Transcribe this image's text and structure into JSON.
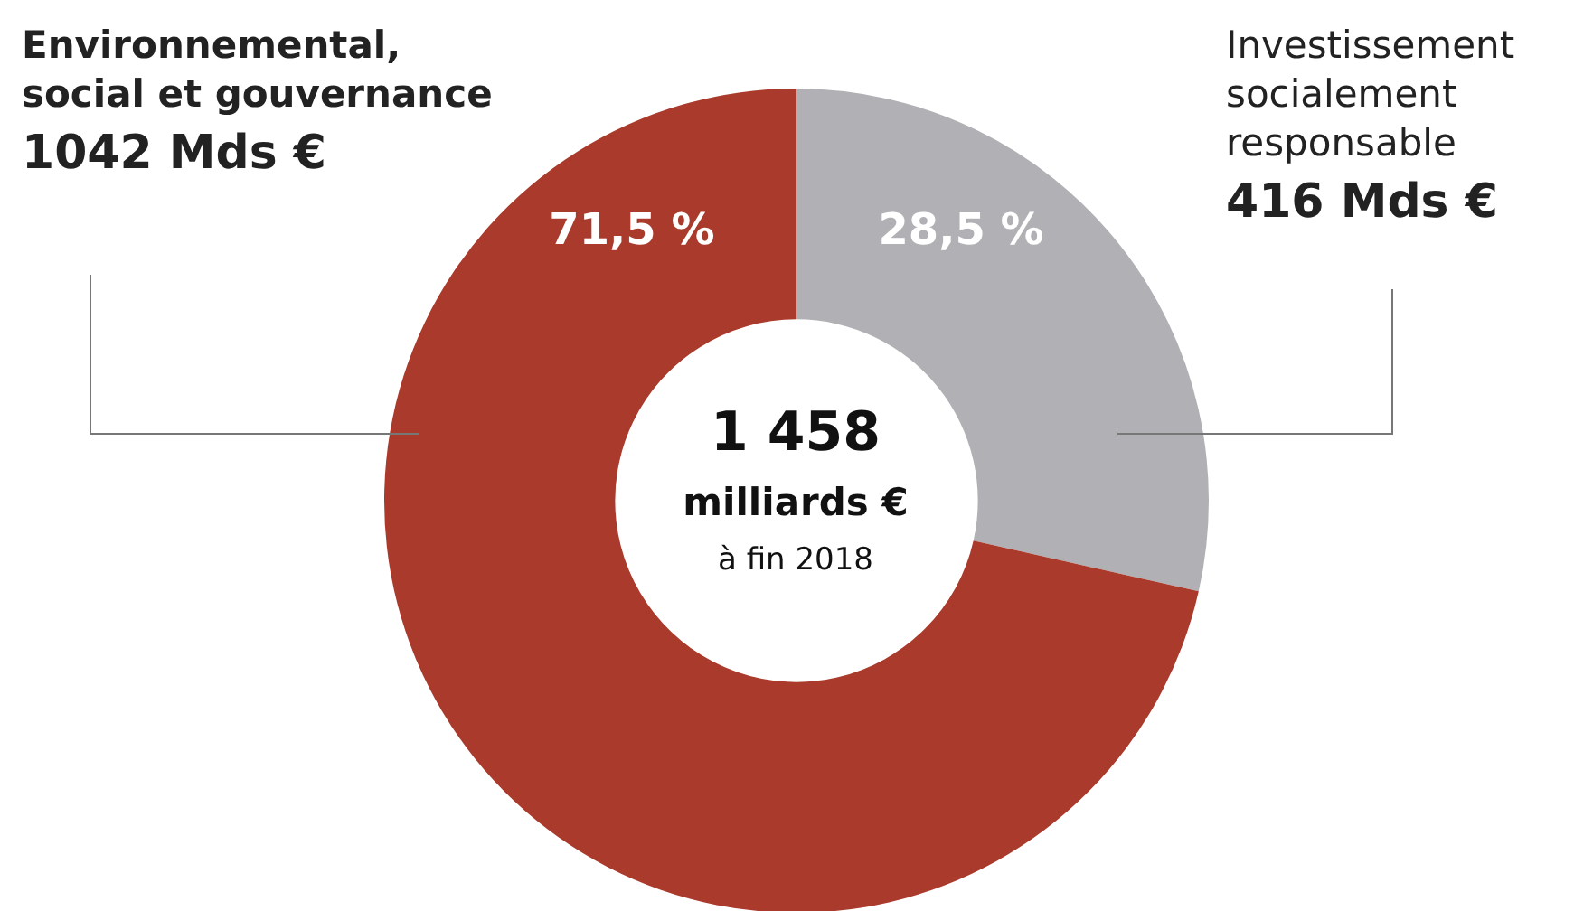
{
  "chart_data": {
    "type": "donut",
    "categories": [
      "Investissement socialement responsable",
      "Environnemental, social et gouvernance"
    ],
    "values": [
      416,
      1042
    ],
    "colors": [
      "#b1b1b5",
      "#a93a2c"
    ],
    "value_labels": [
      "416 Mds €",
      "1042 Mds €"
    ],
    "annotations": [
      {
        "text": "28,5 %",
        "x": "Investissement socialement responsable"
      },
      {
        "text": "71,5 %",
        "x": "Environnemental, social et gouvernance"
      },
      "1 458",
      "milliards €",
      "à fin 2018"
    ],
    "legend": false
  }
}
